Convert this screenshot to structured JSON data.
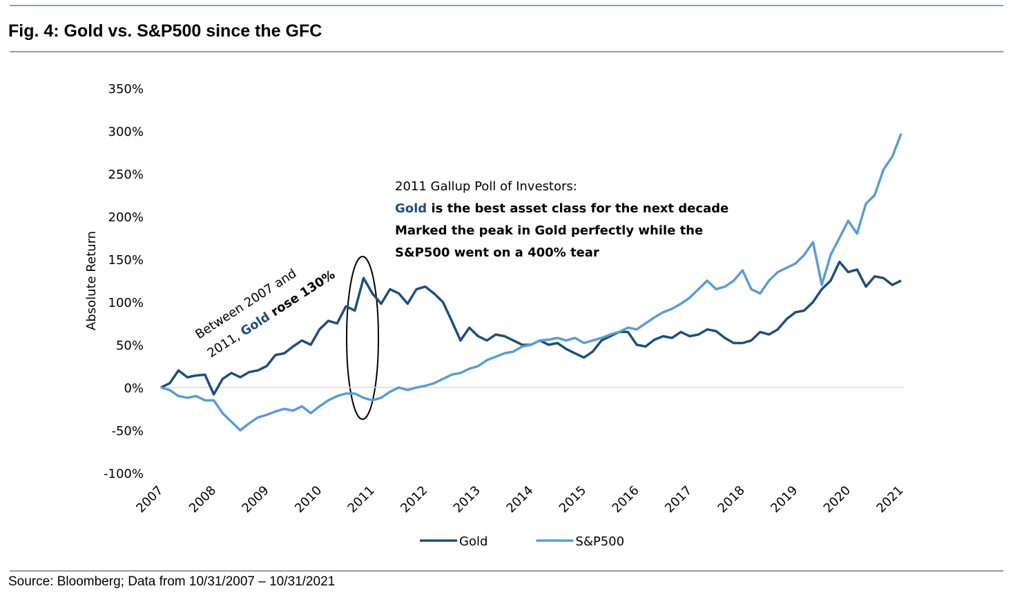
{
  "chart_data": {
    "type": "line",
    "title": "Fig. 4: Gold vs. S&P500 since the GFC",
    "ylabel": "Absolute Return",
    "source": "Source: Bloomberg; Data from 10/31/2007 – 10/31/2021",
    "categories": [
      "2007",
      null,
      null,
      null,
      null,
      null,
      "2008",
      null,
      null,
      null,
      null,
      null,
      "2009",
      null,
      null,
      null,
      null,
      null,
      "2010",
      null,
      null,
      null,
      null,
      null,
      "2011",
      null,
      null,
      null,
      null,
      null,
      "2012",
      null,
      null,
      null,
      null,
      null,
      "2013",
      null,
      null,
      null,
      null,
      null,
      "2014",
      null,
      null,
      null,
      null,
      null,
      "2015",
      null,
      null,
      null,
      null,
      null,
      "2016",
      null,
      null,
      null,
      null,
      null,
      "2017",
      null,
      null,
      null,
      null,
      null,
      "2018",
      null,
      null,
      null,
      null,
      null,
      "2019",
      null,
      null,
      null,
      null,
      null,
      "2020",
      null,
      null,
      null,
      null,
      null,
      "2021"
    ],
    "series": [
      {
        "name": "Gold",
        "color": "#1f4e79",
        "values": [
          0,
          5,
          20,
          12,
          14,
          15,
          -8,
          10,
          17,
          12,
          18,
          20,
          25,
          38,
          40,
          48,
          55,
          50,
          68,
          78,
          75,
          95,
          90,
          128,
          110,
          98,
          115,
          110,
          98,
          115,
          118,
          110,
          100,
          78,
          55,
          70,
          60,
          55,
          62,
          60,
          55,
          50,
          50,
          55,
          50,
          52,
          45,
          40,
          35,
          42,
          55,
          60,
          65,
          65,
          50,
          48,
          56,
          60,
          58,
          65,
          60,
          62,
          68,
          66,
          58,
          52,
          52,
          55,
          65,
          62,
          68,
          80,
          88,
          90,
          100,
          115,
          125,
          147,
          135,
          138,
          118,
          130,
          128,
          120,
          125
        ]
      },
      {
        "name": "S&P500",
        "color": "#5b9bd5",
        "values": [
          0,
          -3,
          -10,
          -12,
          -10,
          -15,
          -15,
          -30,
          -40,
          -50,
          -42,
          -35,
          -32,
          -28,
          -25,
          -27,
          -22,
          -30,
          -22,
          -15,
          -10,
          -7,
          -7,
          -12,
          -15,
          -12,
          -5,
          0,
          -3,
          0,
          2,
          5,
          10,
          15,
          17,
          22,
          25,
          32,
          36,
          40,
          42,
          48,
          50,
          55,
          56,
          58,
          55,
          58,
          52,
          55,
          58,
          62,
          65,
          70,
          68,
          75,
          82,
          88,
          92,
          98,
          105,
          115,
          125,
          115,
          118,
          125,
          137,
          115,
          110,
          125,
          135,
          140,
          145,
          155,
          170,
          120,
          155,
          175,
          195,
          180,
          215,
          225,
          255,
          270,
          297
        ]
      }
    ],
    "ylim": [
      -100,
      350
    ],
    "yticks": [
      {
        "value": -100,
        "label": "-100%"
      },
      {
        "value": -50,
        "label": "-50%"
      },
      {
        "value": 0,
        "label": "0%"
      },
      {
        "value": 50,
        "label": "50%"
      },
      {
        "value": 100,
        "label": "100%"
      },
      {
        "value": 150,
        "label": "150%"
      },
      {
        "value": 200,
        "label": "200%"
      },
      {
        "value": 250,
        "label": "250%"
      },
      {
        "value": 300,
        "label": "300%"
      },
      {
        "value": 350,
        "label": "350%"
      }
    ],
    "zero_line": true,
    "legend": "bottom",
    "annotation_left": [
      [
        "Between 2007 and"
      ],
      [
        "2011, ",
        "Gold",
        " rose 130%"
      ]
    ],
    "annotation_right": [
      [
        "2011 Gallup Poll of Investors:"
      ],
      [
        "Gold",
        " is the best asset class for the next decade"
      ],
      [
        "Marked the peak in Gold perfectly while the"
      ],
      [
        "S&P500 went on a 400% tear"
      ]
    ]
  }
}
